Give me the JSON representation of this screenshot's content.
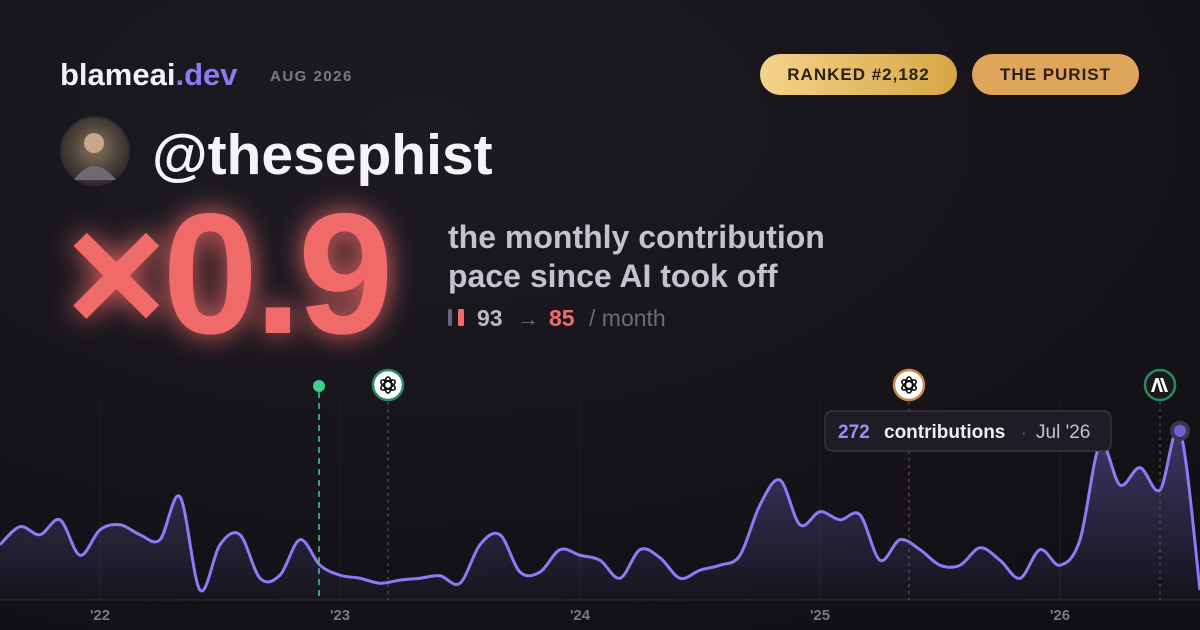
{
  "header": {
    "brand": "blameai",
    "tld": ".dev",
    "date": "AUG 2026",
    "badges": [
      "RANKED #2,182",
      "THE PURIST"
    ]
  },
  "profile": {
    "handle": "@thesephist"
  },
  "headline": {
    "multiplier": "×0.9",
    "description": [
      "the monthly contribution",
      "pace since AI took off"
    ],
    "before": 93,
    "arrow": "→",
    "after": 85,
    "unit": "/ month"
  },
  "chart_data": {
    "type": "line",
    "color": "#8b7cf6",
    "xlim": [
      0,
      60
    ],
    "xticks": [
      {
        "value": 5,
        "label": "'22"
      },
      {
        "value": 17,
        "label": "'23"
      },
      {
        "value": 29,
        "label": "'24"
      },
      {
        "value": 41,
        "label": "'25"
      },
      {
        "value": 53,
        "label": "'26"
      }
    ],
    "ylim": [
      0,
      370
    ],
    "grid": true,
    "values": [
      89,
      118,
      105,
      129,
      72,
      113,
      121,
      105,
      97,
      166,
      16,
      89,
      105,
      35,
      40,
      97,
      56,
      40,
      35,
      27,
      32,
      35,
      39,
      27,
      89,
      105,
      45,
      45,
      81,
      72,
      64,
      35,
      81,
      68,
      35,
      48,
      56,
      72,
      153,
      193,
      121,
      142,
      129,
      137,
      64,
      97,
      81,
      56,
      56,
      84,
      64,
      35,
      81,
      56,
      97,
      250,
      185,
      213,
      177,
      272,
      16
    ],
    "tooltip": {
      "label": "contributions",
      "separator": "·",
      "date": "Jul '26"
    }
  }
}
